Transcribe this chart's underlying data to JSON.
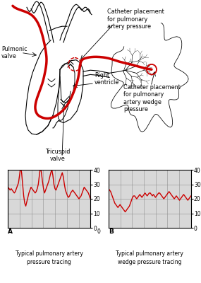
{
  "bg_color": "#ffffff",
  "labels": {
    "pulmonic_valve": "Pulmonic\nvalve",
    "right_ventricle": "Right\nventricle",
    "tricuspid_valve": "Tricuspid\nvalve",
    "catheter_artery": "Catheter placement\nfor pulmonary\nartery pressure",
    "catheter_wedge": "Catheter placement\nfor pulmonary\nartery wedge\npressure",
    "chart_a_label": "A",
    "chart_b_label": "B",
    "chart_a_caption1": "Typical pulmonary artery",
    "chart_a_caption2": "pressure tracing",
    "chart_b_caption1": "Typical pulmonary artery",
    "chart_b_caption2": "wedge pressure tracing"
  },
  "pa_trace": [
    28,
    27,
    26,
    27,
    26,
    25,
    24,
    25,
    27,
    29,
    31,
    36,
    42,
    38,
    30,
    22,
    17,
    15,
    18,
    21,
    24,
    26,
    28,
    27,
    26,
    25,
    24,
    25,
    27,
    30,
    36,
    42,
    38,
    32,
    27,
    24,
    26,
    28,
    30,
    32,
    35,
    38,
    40,
    36,
    30,
    27,
    26,
    28,
    30,
    32,
    34,
    36,
    38,
    35,
    30,
    26,
    24,
    22,
    21,
    22,
    24,
    25,
    26,
    25,
    24,
    23,
    22,
    21,
    20,
    21,
    22,
    24,
    26,
    28,
    27,
    26,
    25,
    24,
    22,
    20
  ],
  "wedge_trace": [
    27,
    26,
    25,
    23,
    21,
    19,
    17,
    16,
    15,
    14,
    15,
    16,
    15,
    14,
    13,
    12,
    11,
    12,
    13,
    14,
    15,
    17,
    19,
    21,
    22,
    22,
    21,
    20,
    21,
    22,
    23,
    22,
    21,
    22,
    23,
    24,
    23,
    22,
    23,
    24,
    24,
    23,
    22,
    23,
    22,
    21,
    22,
    23,
    24,
    24,
    23,
    22,
    21,
    20,
    21,
    22,
    23,
    24,
    25,
    24,
    23,
    22,
    21,
    20,
    21,
    22,
    21,
    20,
    19,
    20,
    21,
    22,
    23,
    22,
    21,
    20,
    19,
    20,
    21,
    22
  ],
  "line_color": "#cc0000",
  "grid_color": "#888888",
  "grid_bg": "#d8d8d8",
  "yticks": [
    0,
    10,
    20,
    30,
    40
  ],
  "chart_a_ylim": [
    0,
    40
  ],
  "chart_b_ylim": [
    0,
    40
  ]
}
